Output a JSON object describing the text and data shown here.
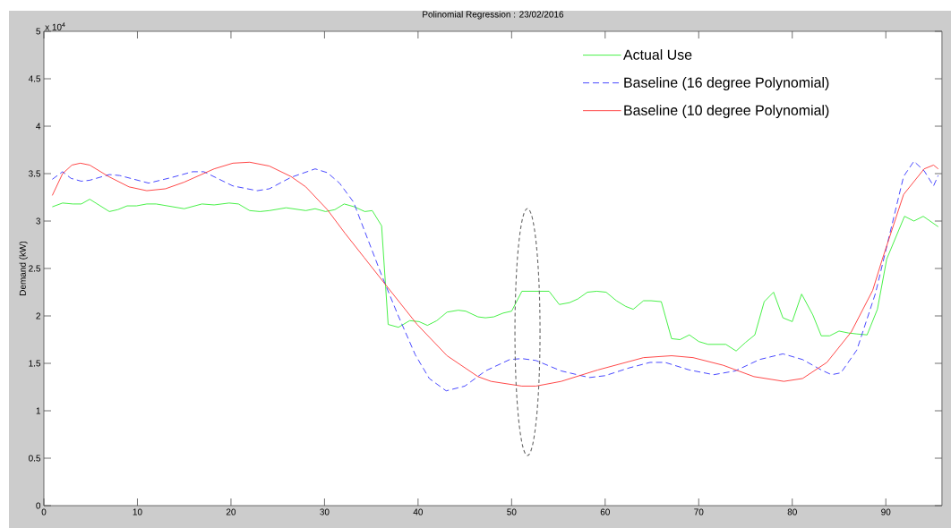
{
  "chart_data": {
    "type": "line",
    "title": "Polinomial Regression : 23/02/2016",
    "ylabel": "Demand (kW)",
    "annotations": [
      "x 10$^{4}$"
    ],
    "xlim": [
      0,
      96
    ],
    "xticks": [
      0,
      10,
      20,
      30,
      40,
      50,
      60,
      70,
      80,
      90
    ],
    "ylim": [
      0,
      5
    ],
    "yticks": [
      0,
      0.5,
      1,
      1.5,
      2,
      2.5,
      3,
      3.5,
      4,
      4.5,
      5
    ],
    "grid": false,
    "legend": "top right",
    "marker": "none",
    "series": [
      {
        "name": "Actual Use",
        "color": "#33ee33",
        "line_style": "solid",
        "x": [
          0.9,
          2,
          3.1,
          4,
          4.9,
          7,
          7.9,
          8.9,
          9.9,
          11,
          12,
          15,
          16.9,
          18.2,
          19.8,
          20.8,
          22,
          23.1,
          24.1,
          25.9,
          28,
          29,
          30.1,
          31.1,
          32.1,
          33.2,
          34.3,
          35.1,
          36.1,
          36.8,
          37.9,
          39.1,
          40.1,
          41,
          42,
          43.1,
          44.3,
          45.1,
          46.4,
          47.2,
          48.1,
          49.1,
          50,
          51.1,
          52.6,
          54,
          55.1,
          56.2,
          57.1,
          58.1,
          59.1,
          60.1,
          61.2,
          62.2,
          63,
          64.1,
          64.9,
          66,
          67.1,
          68,
          69,
          70,
          71,
          72.9,
          74,
          75,
          76,
          77,
          78,
          79,
          80,
          81,
          82.2,
          83.1,
          84,
          85,
          86,
          86.9,
          88,
          89.1,
          90.1,
          92,
          93,
          94,
          95.6
        ],
        "values": [
          3.15,
          3.19,
          3.18,
          3.18,
          3.23,
          3.1,
          3.12,
          3.16,
          3.16,
          3.18,
          3.18,
          3.13,
          3.18,
          3.17,
          3.19,
          3.18,
          3.11,
          3.1,
          3.11,
          3.14,
          3.11,
          3.13,
          3.1,
          3.12,
          3.18,
          3.15,
          3.1,
          3.11,
          2.95,
          1.91,
          1.88,
          1.95,
          1.94,
          1.9,
          1.95,
          2.04,
          2.06,
          2.05,
          1.99,
          1.98,
          1.99,
          2.03,
          2.05,
          2.26,
          2.26,
          2.26,
          2.12,
          2.14,
          2.18,
          2.25,
          2.26,
          2.25,
          2.16,
          2.1,
          2.07,
          2.16,
          2.16,
          2.15,
          1.76,
          1.75,
          1.8,
          1.73,
          1.7,
          1.7,
          1.63,
          1.72,
          1.8,
          2.15,
          2.25,
          1.98,
          1.94,
          2.23,
          2.01,
          1.79,
          1.79,
          1.84,
          1.82,
          1.81,
          1.8,
          2.07,
          2.6,
          3.05,
          3.0,
          3.05,
          2.94
        ]
      },
      {
        "name": "Baseline (16 degree Polynomial)",
        "color": "#3333ff",
        "line_style": "dashed",
        "x": [
          0.9,
          2,
          2.9,
          4,
          4.9,
          7,
          8.1,
          11.2,
          13.7,
          15.9,
          17.1,
          20.2,
          22.8,
          24.1,
          26.4,
          29,
          30.3,
          31.6,
          33.1,
          34.5,
          36.1,
          37.8,
          39.7,
          41.2,
          43,
          45,
          47.2,
          49.8,
          51.1,
          52.6,
          55.3,
          58.3,
          60,
          62.5,
          64.8,
          66.4,
          69,
          71.6,
          73.9,
          76.5,
          79,
          81.1,
          83.1,
          84.2,
          85.2,
          86.9,
          88.9,
          89.9,
          91.9,
          93,
          94.1,
          95.1,
          95.6
        ],
        "values": [
          3.44,
          3.52,
          3.45,
          3.42,
          3.43,
          3.49,
          3.48,
          3.4,
          3.46,
          3.52,
          3.52,
          3.37,
          3.32,
          3.34,
          3.46,
          3.55,
          3.51,
          3.4,
          3.2,
          2.84,
          2.43,
          2.02,
          1.59,
          1.34,
          1.21,
          1.26,
          1.42,
          1.54,
          1.55,
          1.53,
          1.42,
          1.35,
          1.37,
          1.45,
          1.51,
          1.51,
          1.43,
          1.38,
          1.42,
          1.54,
          1.6,
          1.54,
          1.43,
          1.38,
          1.4,
          1.64,
          2.24,
          2.65,
          3.47,
          3.63,
          3.53,
          3.37,
          3.48
        ]
      },
      {
        "name": "Baseline (10 degree Polynomial)",
        "color": "#ff3333",
        "line_style": "solid",
        "x": [
          0.9,
          2,
          3,
          3.9,
          4.9,
          6.9,
          9.1,
          11,
          13,
          15,
          18.2,
          20.2,
          22,
          24.1,
          26.4,
          28,
          30.3,
          32.2,
          34.2,
          36.6,
          39.9,
          43.1,
          46.4,
          47.8,
          51.1,
          52.6,
          55.3,
          59.2,
          64.1,
          67.1,
          69.4,
          72.6,
          75.9,
          79.1,
          81.1,
          83.7,
          86.3,
          88.6,
          89.6,
          91.9,
          94.1,
          95.1,
          95.6
        ],
        "values": [
          3.27,
          3.5,
          3.59,
          3.61,
          3.59,
          3.47,
          3.36,
          3.32,
          3.34,
          3.41,
          3.55,
          3.61,
          3.62,
          3.58,
          3.47,
          3.36,
          3.12,
          2.87,
          2.62,
          2.32,
          1.91,
          1.58,
          1.36,
          1.31,
          1.26,
          1.26,
          1.31,
          1.43,
          1.56,
          1.58,
          1.56,
          1.48,
          1.36,
          1.31,
          1.34,
          1.51,
          1.83,
          2.27,
          2.59,
          3.28,
          3.55,
          3.59,
          3.55
        ]
      }
    ]
  }
}
